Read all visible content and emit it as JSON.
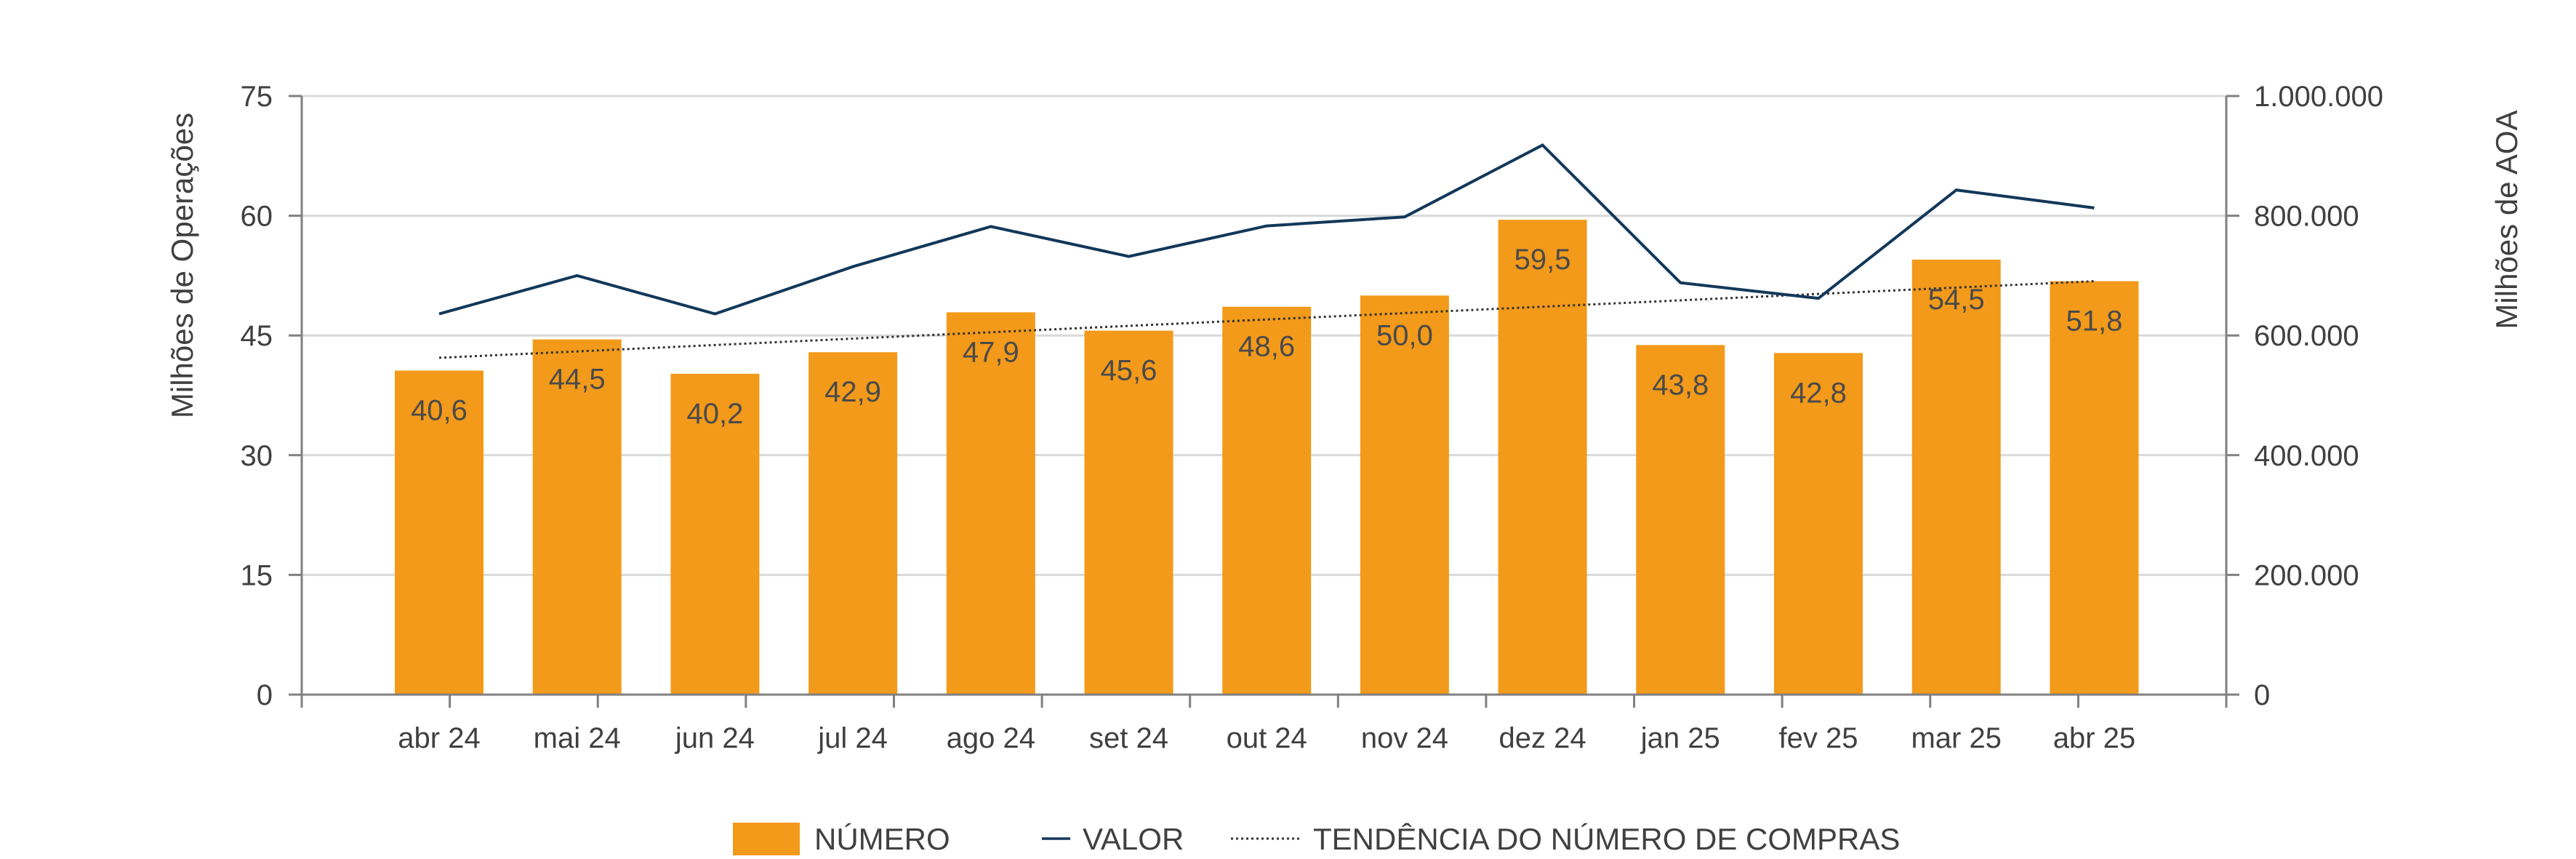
{
  "colors": {
    "bar": "#F39A1A",
    "value_line": "#12385A",
    "trend_line": "#333333",
    "gridline": "#D9D9D9",
    "axis": "#808080",
    "text": "#404040"
  },
  "chart_data": {
    "type": "bar",
    "categories": [
      "abr 24",
      "mai 24",
      "jun 24",
      "jul 24",
      "ago 24",
      "set 24",
      "out 24",
      "nov 24",
      "dez 24",
      "jan 25",
      "fev 25",
      "mar 25",
      "abr 25"
    ],
    "series": [
      {
        "name": "NÚMERO",
        "type": "bar",
        "axis": "left",
        "values": [
          40.6,
          44.5,
          40.2,
          42.9,
          47.9,
          45.6,
          48.6,
          50.0,
          59.5,
          43.8,
          42.8,
          54.5,
          51.8
        ],
        "labels": [
          "40,6",
          "44,5",
          "40,2",
          "42,9",
          "47,9",
          "45,6",
          "48,6",
          "50,0",
          "59,5",
          "43,8",
          "42,8",
          "54,5",
          "51,8"
        ]
      },
      {
        "name": "VALOR",
        "type": "line",
        "axis": "right",
        "values": [
          636000,
          700000,
          636000,
          715000,
          782000,
          732000,
          783000,
          798000,
          918000,
          688000,
          662000,
          843000,
          813000
        ]
      },
      {
        "name": "TENDÊNCIA DO NÚMERO DE COMPRAS",
        "type": "trendline",
        "axis": "left",
        "values": [
          42.2,
          43.0,
          43.8,
          44.6,
          45.4,
          46.2,
          47.0,
          47.8,
          48.6,
          49.4,
          50.2,
          51.0,
          51.8
        ]
      }
    ],
    "ylabel": "Milhões de Operações",
    "y2label": "Milhões de AOA",
    "ylim": [
      0,
      75
    ],
    "y2lim": [
      0,
      1000000
    ],
    "yticks": [
      "0",
      "15",
      "30",
      "45",
      "60",
      "75"
    ],
    "y2ticks": [
      "0",
      "200.000",
      "400.000",
      "600.000",
      "800.000",
      "1.000.000"
    ],
    "grid": true,
    "legend_position": "bottom-center"
  }
}
